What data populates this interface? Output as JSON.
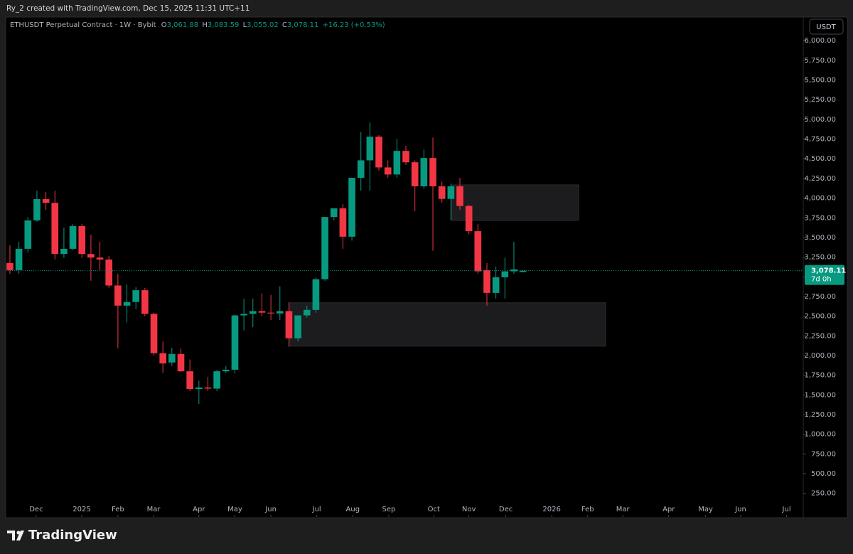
{
  "header": {
    "credit": "Ry_2 created with TradingView.com, Dec 15, 2025 11:31 UTC+11",
    "symbol": "ETHUSDT Perpetual Contract · 1W · Bybit",
    "ohlc": [
      {
        "key": "O",
        "value": "3,061.88"
      },
      {
        "key": "H",
        "value": "3,083.59"
      },
      {
        "key": "L",
        "value": "3,055.02"
      },
      {
        "key": "C",
        "value": "3,078.11"
      }
    ],
    "change": "+16.23 (+0.53%)",
    "currency": "USDT"
  },
  "footer": {
    "brand": "TradingView"
  },
  "chart_data": {
    "type": "candlestick",
    "categories": [
      null,
      null,
      null,
      null,
      null,
      null,
      null,
      null,
      null,
      null,
      null,
      null,
      null,
      null,
      null,
      null,
      null,
      null,
      null,
      null,
      null,
      null,
      null,
      null,
      null,
      null,
      null,
      null,
      null,
      null,
      null,
      null,
      null,
      null,
      null,
      null,
      null,
      null,
      null,
      null,
      null,
      null,
      null,
      null,
      null,
      null,
      null,
      null,
      null,
      null,
      null,
      null,
      null,
      null,
      null,
      null,
      null,
      null
    ],
    "open": [
      3175,
      3085,
      3356,
      3717,
      3987,
      3940,
      3290,
      3356,
      3645,
      3290,
      3245,
      3220,
      2890,
      2634,
      2680,
      2830,
      2530,
      2030,
      1912,
      2020,
      1800,
      1575,
      1595,
      1580,
      1800,
      1820,
      2510,
      2530,
      2565,
      2545,
      2535,
      2565,
      2220,
      2510,
      2580,
      2970,
      3760,
      3870,
      3510,
      4258,
      4480,
      4780,
      4390,
      4300,
      4600,
      4455,
      4150,
      4510,
      4150,
      3990,
      4150,
      3900,
      3580,
      3085,
      2796,
      2995,
      3070,
      3061.88
    ],
    "high": [
      3400,
      3446,
      3760,
      4095,
      4077,
      4095,
      3626,
      3670,
      3670,
      3536,
      3446,
      3265,
      3040,
      2904,
      2870,
      2860,
      2545,
      2180,
      2100,
      2090,
      1950,
      1680,
      1730,
      1820,
      1865,
      2520,
      2724,
      2724,
      2790,
      2770,
      2880,
      2680,
      2510,
      2634,
      2985,
      3760,
      3870,
      3925,
      4258,
      4840,
      4960,
      4800,
      4480,
      4755,
      4665,
      4480,
      4620,
      4770,
      4210,
      4185,
      4258,
      3915,
      3670,
      3175,
      3130,
      3245,
      3446,
      3083.59
    ],
    "low": [
      3040,
      3040,
      3310,
      3700,
      3850,
      3220,
      3240,
      3340,
      3240,
      2950,
      3085,
      2860,
      2092,
      2420,
      2590,
      2500,
      2002,
      1780,
      1870,
      1790,
      1550,
      1385,
      1550,
      1550,
      1780,
      1770,
      2320,
      2360,
      2500,
      2450,
      2450,
      2110,
      2180,
      2480,
      2543,
      2950,
      3717,
      3356,
      3460,
      4095,
      4095,
      4350,
      4260,
      4260,
      4420,
      3835,
      4120,
      3330,
      3940,
      3717,
      3850,
      3540,
      3040,
      2634,
      2724,
      2724,
      3040,
      3055.02
    ],
    "close": [
      3085,
      3356,
      3717,
      3987,
      3940,
      3290,
      3356,
      3645,
      3290,
      3245,
      3220,
      2890,
      2634,
      2680,
      2830,
      2530,
      2030,
      1900,
      2020,
      1800,
      1575,
      1595,
      1580,
      1800,
      1820,
      2510,
      2530,
      2565,
      2545,
      2535,
      2565,
      2220,
      2510,
      2580,
      2970,
      3760,
      3870,
      3510,
      4258,
      4480,
      4780,
      4390,
      4300,
      4600,
      4455,
      4150,
      4510,
      4150,
      3990,
      4150,
      3900,
      3580,
      3070,
      2796,
      2995,
      3070,
      3095,
      3078.11
    ],
    "up_color": "#089981",
    "down_color": "#f23645",
    "ylim": [
      -60,
      6300
    ],
    "yticks": [
      {
        "value": 250,
        "label": "250.00"
      },
      {
        "value": 500,
        "label": "500.00"
      },
      {
        "value": 750,
        "label": "750.00"
      },
      {
        "value": 1000,
        "label": "1,000.00"
      },
      {
        "value": 1250,
        "label": "1,250.00"
      },
      {
        "value": 1500,
        "label": "1,500.00"
      },
      {
        "value": 1750,
        "label": "1,750.00"
      },
      {
        "value": 2000,
        "label": "2,000.00"
      },
      {
        "value": 2250,
        "label": "2,250.00"
      },
      {
        "value": 2500,
        "label": "2,500.00"
      },
      {
        "value": 2750,
        "label": "2,750.00"
      },
      {
        "value": 3000,
        "label": "3,000.00"
      },
      {
        "value": 3250,
        "label": "3,250.00"
      },
      {
        "value": 3500,
        "label": "3,500.00"
      },
      {
        "value": 3750,
        "label": "3,750.00"
      },
      {
        "value": 4000,
        "label": "4,000.00"
      },
      {
        "value": 4250,
        "label": "4,250.00"
      },
      {
        "value": 4500,
        "label": "4,500.00"
      },
      {
        "value": 4750,
        "label": "4,750.00"
      },
      {
        "value": 5000,
        "label": "5,000.00"
      },
      {
        "value": 5250,
        "label": "5,250.00"
      },
      {
        "value": 5500,
        "label": "5,500.00"
      },
      {
        "value": 5750,
        "label": "5,750.00"
      },
      {
        "value": 6000,
        "label": "6,000.00"
      }
    ],
    "xlim": [
      -0.47,
      88.15
    ],
    "xticks": [
      {
        "value": 2.92,
        "label": "Dec"
      },
      {
        "value": 7.98,
        "label": "2025"
      },
      {
        "value": 12.0,
        "label": "Feb"
      },
      {
        "value": 15.96,
        "label": "Mar"
      },
      {
        "value": 21.0,
        "label": "Apr"
      },
      {
        "value": 25.0,
        "label": "May"
      },
      {
        "value": 29.0,
        "label": "Jun"
      },
      {
        "value": 34.1,
        "label": "Jul"
      },
      {
        "value": 38.1,
        "label": "Aug"
      },
      {
        "value": 42.1,
        "label": "Sep"
      },
      {
        "value": 47.1,
        "label": "Oct"
      },
      {
        "value": 51.0,
        "label": "Nov"
      },
      {
        "value": 55.1,
        "label": "Dec"
      },
      {
        "value": 60.2,
        "label": "2026"
      },
      {
        "value": 64.2,
        "label": "Feb"
      },
      {
        "value": 68.1,
        "label": "Mar"
      },
      {
        "value": 73.2,
        "label": "Apr"
      },
      {
        "value": 77.3,
        "label": "May"
      },
      {
        "value": 81.2,
        "label": "Jun"
      },
      {
        "value": 86.3,
        "label": "Jul"
      }
    ],
    "zones": [
      {
        "x": [
          49.1,
          63.2
        ],
        "y": [
          3717,
          4168
        ]
      },
      {
        "x": [
          31.1,
          66.2
        ],
        "y": [
          2120,
          2670
        ]
      }
    ],
    "last_price": {
      "value": 3078.11,
      "label": "3,078.11",
      "countdown": "7d 0h"
    }
  }
}
